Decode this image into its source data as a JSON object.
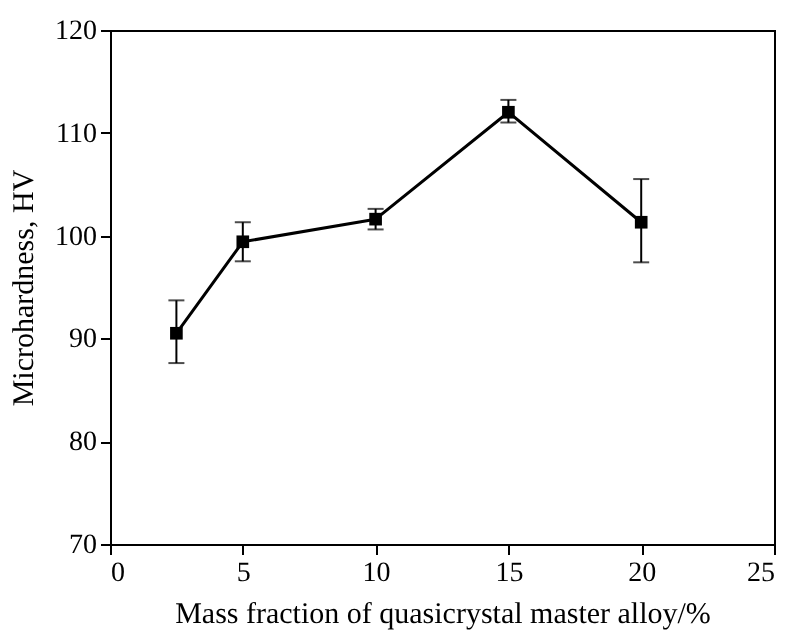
{
  "chart_data": {
    "type": "line",
    "xlabel": "Mass fraction of quasicrystal master alloy/%",
    "ylabel": "Microhardness, HV",
    "x": [
      2.5,
      5,
      10,
      15,
      20
    ],
    "series": [
      {
        "color": "#000000",
        "values": [
          90.5,
          99.4,
          101.6,
          112,
          101.3
        ],
        "errors": [
          [
            87.6,
            93.7
          ],
          [
            97.5,
            101.3
          ],
          [
            100.6,
            102.6
          ],
          [
            111,
            113.2
          ],
          [
            97.4,
            105.5
          ]
        ]
      }
    ],
    "xlim": [
      0,
      25
    ],
    "xticks": [
      0,
      5,
      10,
      15,
      20,
      25
    ],
    "ylim": [
      70,
      120
    ],
    "yticks": [
      70,
      80,
      90,
      100,
      110,
      120
    ],
    "marker": "square",
    "line_style": "solid"
  }
}
